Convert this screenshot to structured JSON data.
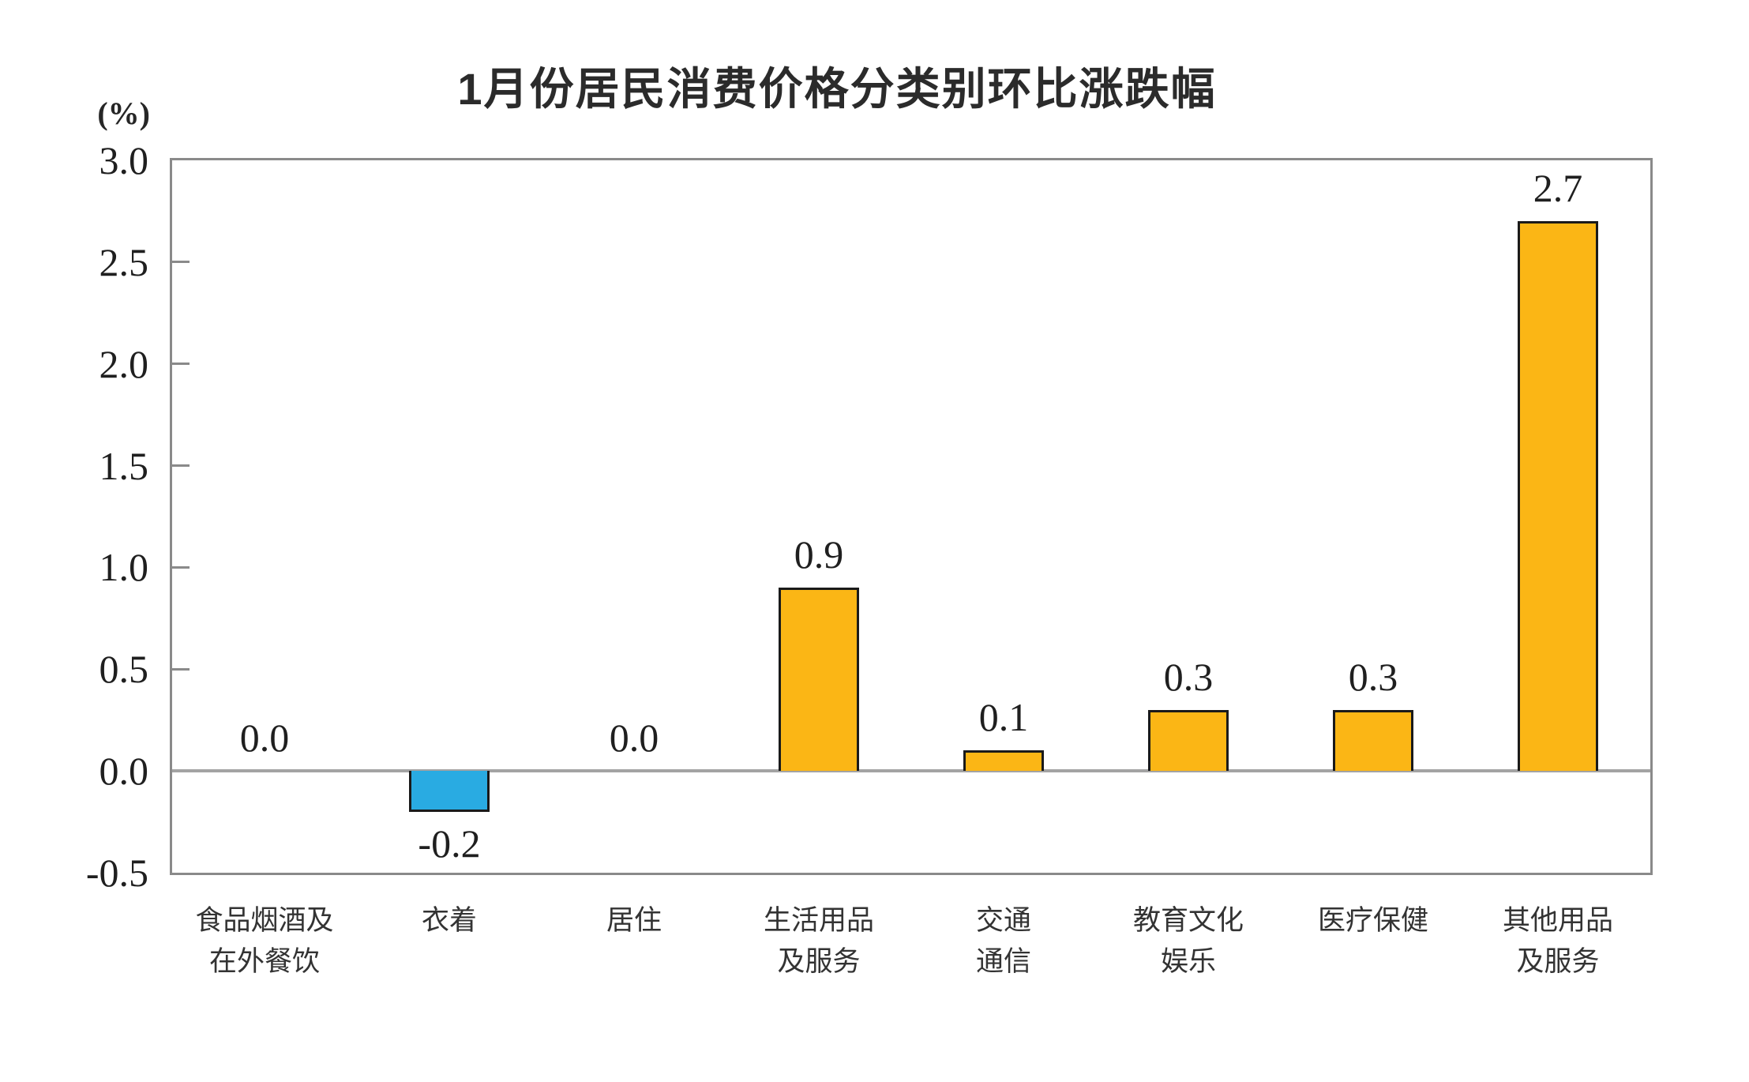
{
  "chart_data": {
    "type": "bar",
    "title": "1月份居民消费价格分类别环比涨跌幅",
    "ylabel": "(%)",
    "xlabel": "",
    "ylim": [
      -0.5,
      3.0
    ],
    "ytick_interval": 0.5,
    "yticks": [
      3.0,
      2.5,
      2.0,
      1.5,
      1.0,
      0.5,
      0.0,
      -0.5
    ],
    "ytick_labels": [
      "3.0",
      "2.5",
      "2.0",
      "1.5",
      "1.0",
      "0.5",
      "0.0",
      "-0.5"
    ],
    "grid": false,
    "legend": false,
    "categories": [
      "食品烟酒及\n在外餐饮",
      "衣着",
      "居住",
      "生活用品\n及服务",
      "交通\n通信",
      "教育文化\n娱乐",
      "医疗保健",
      "其他用品\n及服务"
    ],
    "values": [
      0.0,
      -0.2,
      0.0,
      0.9,
      0.1,
      0.3,
      0.3,
      2.7
    ],
    "value_labels": [
      "0.0",
      "-0.2",
      "0.0",
      "0.9",
      "0.1",
      "0.3",
      "0.3",
      "2.7"
    ],
    "colors": {
      "bar_positive": "#FBB615",
      "bar_negative": "#29ABE2",
      "bar_border": "#1A1A1A",
      "axis_frame": "#8A8A8A",
      "zero_line": "#A3A3A3",
      "text": "#262626"
    }
  }
}
